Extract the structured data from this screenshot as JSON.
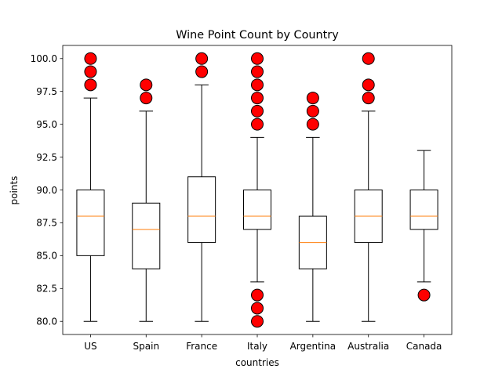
{
  "chart_data": {
    "type": "boxplot",
    "title": "Wine Point Count by Country",
    "xlabel": "countries",
    "ylabel": "points",
    "ylim": [
      79.0,
      101.0
    ],
    "yticks": [
      "80.0",
      "82.5",
      "85.0",
      "87.5",
      "90.0",
      "92.5",
      "95.0",
      "97.5",
      "100.0"
    ],
    "grid": false,
    "colors": {
      "box": "#000000",
      "median": "#ff7f0e",
      "flier_fill": "#ff0000",
      "flier_edge": "#000000"
    },
    "categories": [
      "US",
      "Spain",
      "France",
      "Italy",
      "Argentina",
      "Australia",
      "Canada"
    ],
    "boxes": [
      {
        "category": "US",
        "whisker_low": 80,
        "q1": 85,
        "median": 88,
        "q3": 90,
        "whisker_high": 97,
        "fliers": [
          98,
          99,
          100
        ]
      },
      {
        "category": "Spain",
        "whisker_low": 80,
        "q1": 84,
        "median": 87,
        "q3": 89,
        "whisker_high": 96,
        "fliers": [
          97,
          98
        ]
      },
      {
        "category": "France",
        "whisker_low": 80,
        "q1": 86,
        "median": 88,
        "q3": 91,
        "whisker_high": 98,
        "fliers": [
          99,
          100
        ]
      },
      {
        "category": "Italy",
        "whisker_low": 83,
        "q1": 87,
        "median": 88,
        "q3": 90,
        "whisker_high": 94,
        "fliers": [
          80,
          81,
          82,
          95,
          96,
          97,
          98,
          99,
          100
        ]
      },
      {
        "category": "Argentina",
        "whisker_low": 80,
        "q1": 84,
        "median": 86,
        "q3": 88,
        "whisker_high": 94,
        "fliers": [
          95,
          96,
          97
        ]
      },
      {
        "category": "Australia",
        "whisker_low": 80,
        "q1": 86,
        "median": 88,
        "q3": 90,
        "whisker_high": 96,
        "fliers": [
          97,
          98,
          100
        ]
      },
      {
        "category": "Canada",
        "whisker_low": 83,
        "q1": 87,
        "median": 88,
        "q3": 90,
        "whisker_high": 93,
        "fliers": [
          82
        ]
      }
    ]
  }
}
